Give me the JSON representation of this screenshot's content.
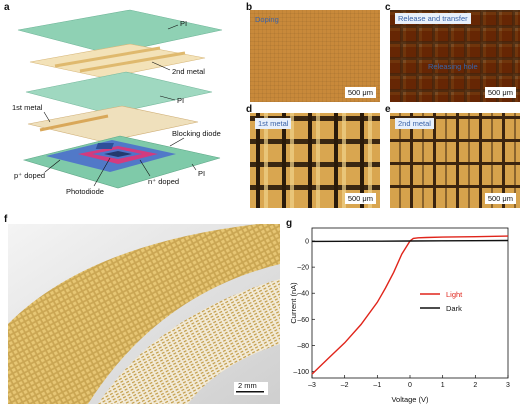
{
  "panels": {
    "a": {
      "letter": "a",
      "labels": {
        "pi_top": "PI",
        "metal2": "2nd metal",
        "pi_mid": "PI",
        "metal1": "1st metal",
        "blocking": "Blocking diode",
        "p_doped": "p⁺ doped",
        "pi_bottom": "PI",
        "n_doped": "n⁺ doped",
        "photodiode": "Photodiode"
      }
    },
    "b": {
      "letter": "b",
      "title": "Doping",
      "scale": "500 μm"
    },
    "c": {
      "letter": "c",
      "title": "Release and transfer",
      "annotation": "Releasing hole",
      "scale": "500 μm"
    },
    "d": {
      "letter": "d",
      "title": "1st metal",
      "scale": "500 μm"
    },
    "e": {
      "letter": "e",
      "title": "2nd metal",
      "scale": "500 μm"
    },
    "f": {
      "letter": "f",
      "scale": "2 mm"
    },
    "g": {
      "letter": "g"
    }
  },
  "chart_data": {
    "type": "line",
    "xlabel": "Voltage (V)",
    "ylabel": "Current (nA)",
    "xlim": [
      -3,
      3
    ],
    "ylim": [
      -105,
      10
    ],
    "xticks": [
      -3,
      -2,
      -1,
      0,
      1,
      2,
      3
    ],
    "yticks": [
      0,
      -20,
      -40,
      -60,
      -80,
      -100
    ],
    "legend_position": "center-right",
    "series": [
      {
        "name": "Light",
        "color": "#e0251b",
        "x": [
          -3,
          -2.5,
          -2,
          -1.5,
          -1,
          -0.75,
          -0.5,
          -0.25,
          0,
          0.1,
          0.25,
          0.5,
          1,
          2,
          3
        ],
        "y": [
          -102,
          -90,
          -78,
          -64,
          -47,
          -36,
          -24,
          -10,
          0,
          2,
          2.5,
          2.7,
          3,
          3.3,
          3.8
        ]
      },
      {
        "name": "Dark",
        "color": "#111111",
        "x": [
          -3,
          -2,
          -1,
          0,
          1,
          2,
          3
        ],
        "y": [
          -0.3,
          -0.2,
          -0.1,
          0,
          0.2,
          0.3,
          0.4
        ]
      }
    ]
  }
}
